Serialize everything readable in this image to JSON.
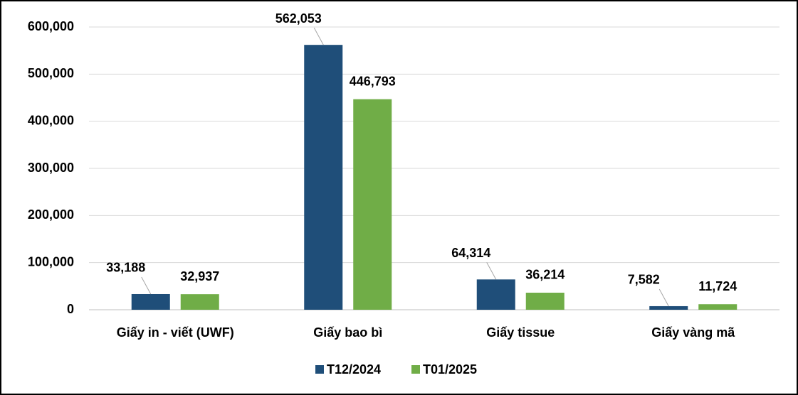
{
  "chart_data": {
    "type": "bar",
    "categories": [
      "Giấy in - viết (UWF)",
      "Giấy bao bì",
      "Giấy tissue",
      "Giấy vàng mã"
    ],
    "series": [
      {
        "name": "T12/2024",
        "color": "#1f4e79",
        "values": [
          33188,
          562053,
          64314,
          7582
        ],
        "value_labels": [
          "33,188",
          "562,053",
          "64,314",
          "7,582"
        ]
      },
      {
        "name": "T01/2025",
        "color": "#70ad47",
        "values": [
          32937,
          446793,
          36214,
          11724
        ],
        "value_labels": [
          "32,937",
          "446,793",
          "36,214",
          "11,724"
        ]
      }
    ],
    "ylim": [
      0,
      600000
    ],
    "yticks": [
      0,
      {
        "value": 100000,
        "label": "100,000"
      },
      {
        "value": 200000,
        "label": "200,000"
      },
      {
        "value": 300000,
        "label": "300,000"
      },
      {
        "value": 400000,
        "label": "400,000"
      },
      {
        "value": 500000,
        "label": "500,000"
      },
      {
        "value": 600000,
        "label": "600,000"
      }
    ],
    "grid": true,
    "legend": "bottom"
  }
}
